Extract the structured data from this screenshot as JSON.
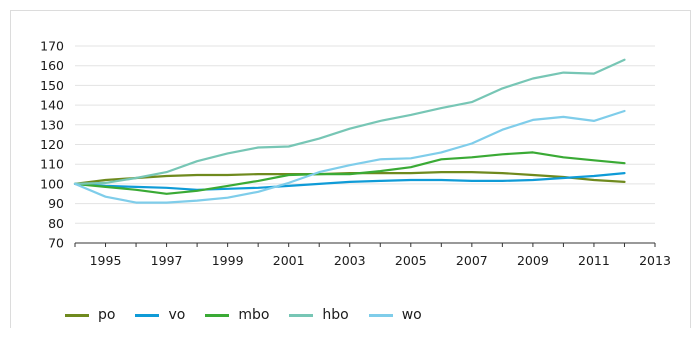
{
  "chart_data": {
    "type": "line",
    "title": "",
    "xlabel": "",
    "ylabel": "",
    "ylim": [
      70,
      170
    ],
    "yticks": [
      70,
      80,
      90,
      100,
      110,
      120,
      130,
      140,
      150,
      160,
      170
    ],
    "xticks": [
      "1995",
      "1997",
      "1999",
      "2001",
      "2003",
      "2005",
      "2007",
      "2009",
      "2011",
      "2013"
    ],
    "x": [
      1994,
      1995,
      1996,
      1997,
      1998,
      1999,
      2000,
      2001,
      2002,
      2003,
      2004,
      2005,
      2006,
      2007,
      2008,
      2009,
      2010,
      2011,
      2012
    ],
    "grid": "horizontal",
    "legend_position": "bottom-left",
    "series": [
      {
        "name": "po",
        "color": "#6f8a1e",
        "values": [
          100,
          102,
          103,
          104,
          104.5,
          104.5,
          105,
          105,
          105,
          105.5,
          105.5,
          105.5,
          106,
          106,
          105.5,
          104.5,
          103.5,
          102,
          101
        ]
      },
      {
        "name": "vo",
        "color": "#0f9bd7",
        "values": [
          100,
          99,
          98.5,
          98,
          97,
          97.5,
          98,
          99,
          100,
          101,
          101.5,
          102,
          102,
          101.5,
          101.5,
          102,
          103,
          104,
          105.5
        ]
      },
      {
        "name": "mbo",
        "color": "#3aaa35",
        "values": [
          100,
          98.5,
          97,
          95,
          96.5,
          99,
          101.5,
          104.5,
          105,
          105,
          106.5,
          108.5,
          112.5,
          113.5,
          115,
          116,
          113.5,
          112,
          110.5
        ]
      },
      {
        "name": "hbo",
        "color": "#77c6b5",
        "values": [
          100,
          100.5,
          103,
          106,
          111.5,
          115.5,
          118.5,
          119,
          123,
          128,
          132,
          135,
          138.5,
          141.5,
          148.5,
          153.5,
          156.5,
          156,
          163
        ]
      },
      {
        "name": "wo",
        "color": "#7fcdea",
        "values": [
          100,
          93.5,
          90.5,
          90.5,
          91.5,
          93,
          96,
          100.5,
          106,
          109.5,
          112.5,
          113,
          116,
          120.5,
          127.5,
          132.5,
          134,
          132,
          137
        ]
      }
    ]
  }
}
